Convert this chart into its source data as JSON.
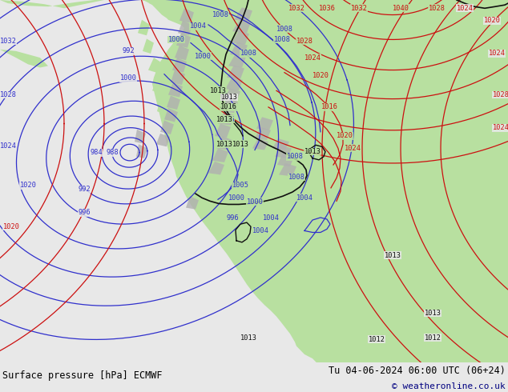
{
  "title_left": "Surface pressure [hPa] ECMWF",
  "title_right": "Tu 04-06-2024 06:00 UTC (06+24)",
  "copyright": "© weatheronline.co.uk",
  "ocean_color": "#e8e8e8",
  "land_color": "#b8e0a0",
  "mountain_color": "#b0b0b0",
  "figsize": [
    6.34,
    4.9
  ],
  "dpi": 100,
  "bottom_bar_color": "#f0f0f0",
  "blue": "#3030cc",
  "red": "#cc1010",
  "black": "#101010",
  "title_fontsize": 8.5,
  "copyright_fontsize": 8
}
